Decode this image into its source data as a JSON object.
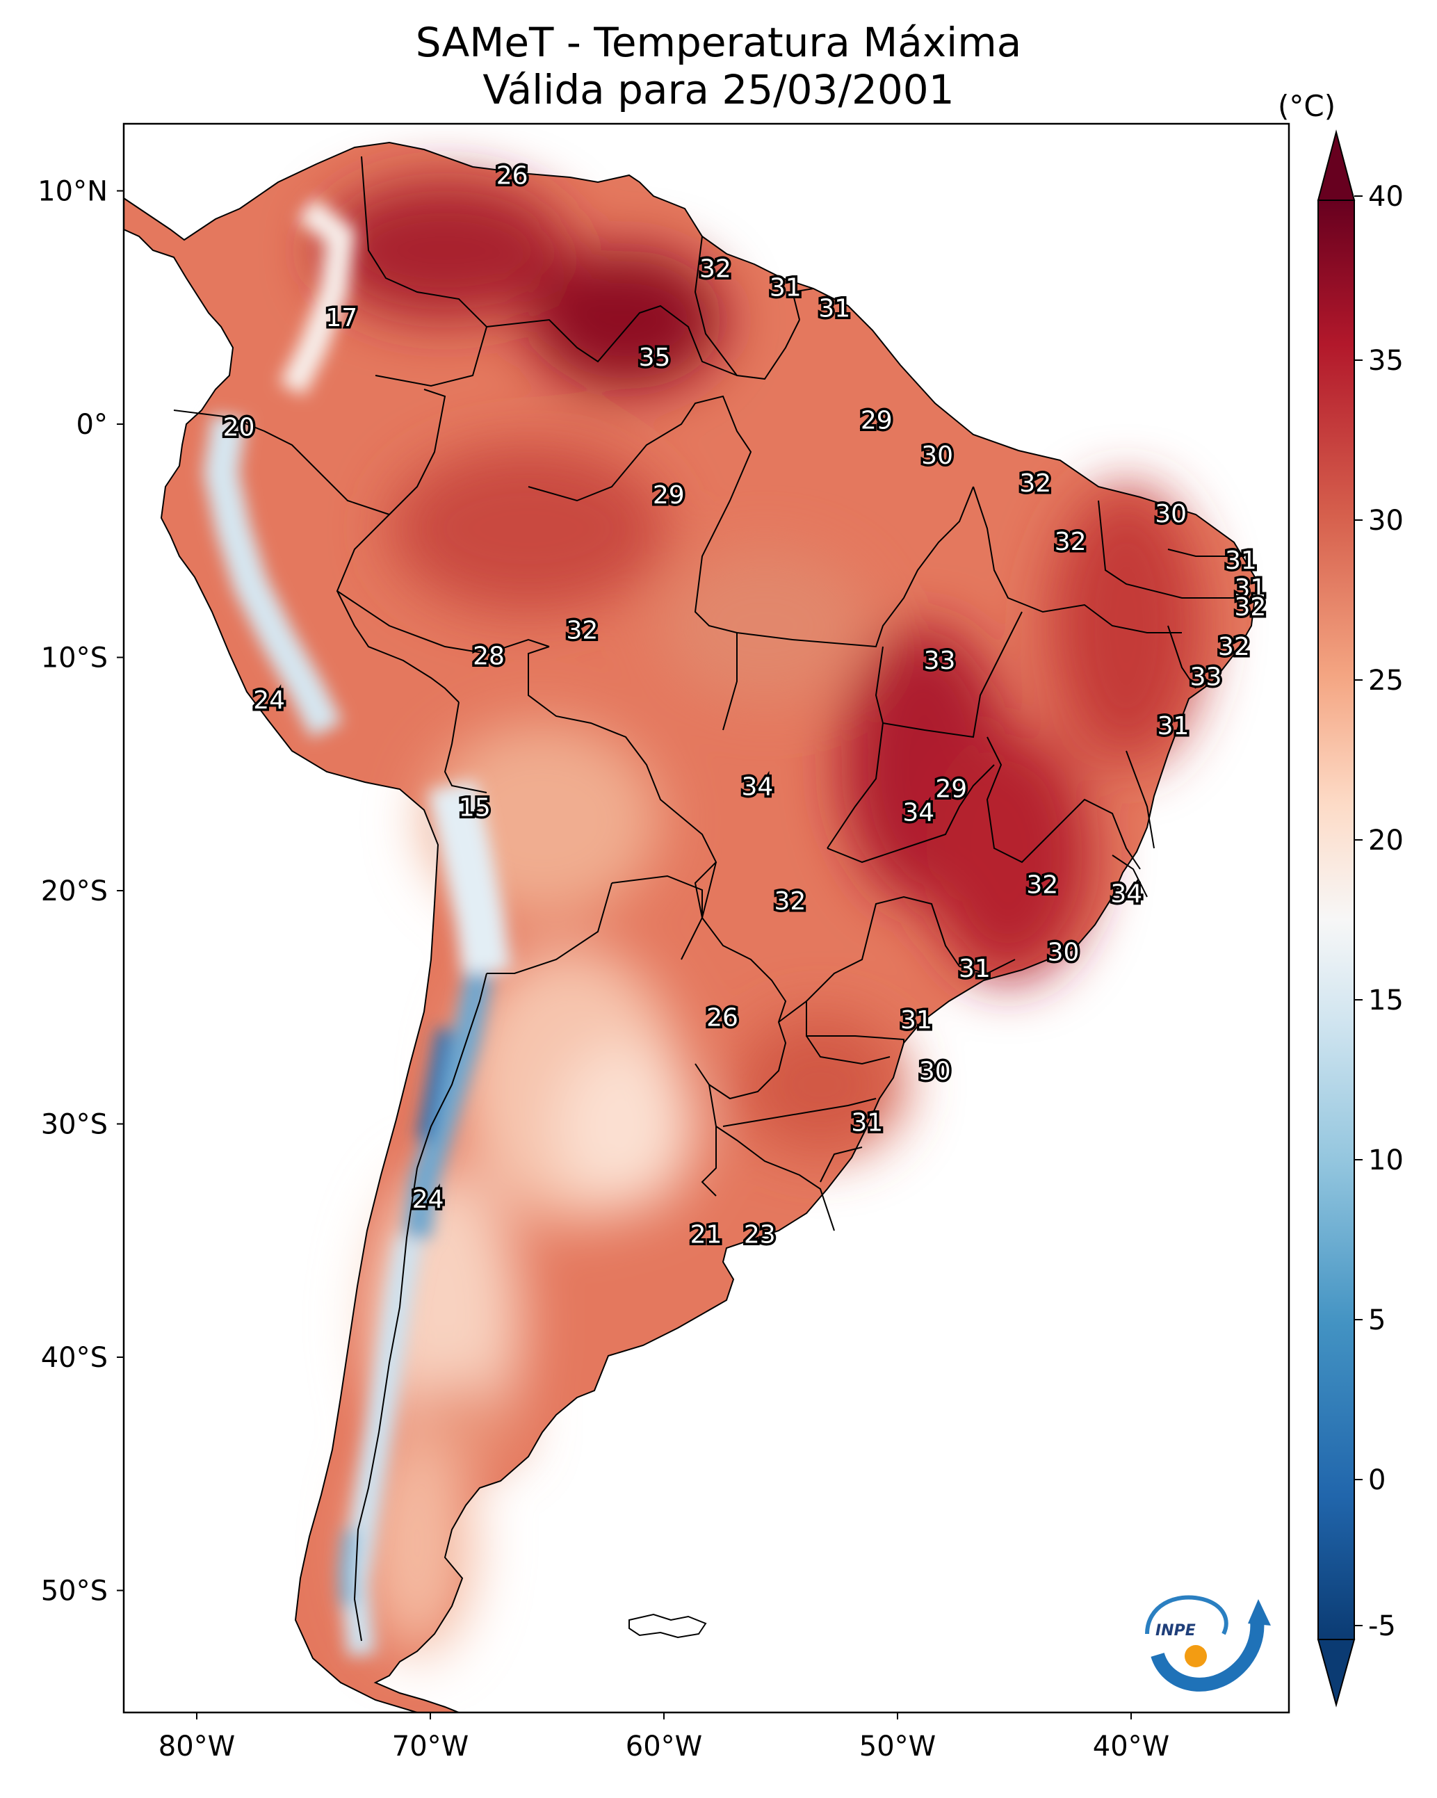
{
  "title_line1": "SAMeT - Temperatura Máxima",
  "title_line2": "Válida para 25/03/2001",
  "unit": "(°C)",
  "lat_ticks": [
    "10°N",
    "0°",
    "10°S",
    "20°S",
    "30°S",
    "40°S",
    "50°S"
  ],
  "lon_ticks": [
    "80°W",
    "70°W",
    "60°W",
    "50°W",
    "40°W"
  ],
  "colorbar": {
    "ticks": [
      "40",
      "35",
      "30",
      "25",
      "20",
      "15",
      "10",
      "5",
      "0",
      "-5"
    ],
    "min": -5,
    "max": 40,
    "colors": [
      "#0b3b73",
      "#2166ac",
      "#4393c3",
      "#92c5de",
      "#d1e5f0",
      "#f7f7f7",
      "#fddbc7",
      "#f4a582",
      "#d6604d",
      "#b2182b",
      "#67001f"
    ]
  },
  "logo_text": "INPE",
  "point_labels": [
    {
      "text": "26",
      "lon": -66.5,
      "lat": 10.6
    },
    {
      "text": "32",
      "lon": -57.8,
      "lat": 6.6
    },
    {
      "text": "31",
      "lon": -54.8,
      "lat": 5.8
    },
    {
      "text": "31",
      "lon": -52.7,
      "lat": 4.9
    },
    {
      "text": "17",
      "lon": -73.8,
      "lat": 4.5
    },
    {
      "text": "35",
      "lon": -60.4,
      "lat": 2.8
    },
    {
      "text": "29",
      "lon": -50.9,
      "lat": 0.1
    },
    {
      "text": "20",
      "lon": -78.2,
      "lat": -0.2
    },
    {
      "text": "30",
      "lon": -48.3,
      "lat": -1.4
    },
    {
      "text": "32",
      "lon": -44.1,
      "lat": -2.6
    },
    {
      "text": "29",
      "lon": -59.8,
      "lat": -3.1
    },
    {
      "text": "30",
      "lon": -38.3,
      "lat": -3.9
    },
    {
      "text": "32",
      "lon": -42.6,
      "lat": -5.1
    },
    {
      "text": "31",
      "lon": -35.3,
      "lat": -5.9
    },
    {
      "text": "31",
      "lon": -34.9,
      "lat": -7.1
    },
    {
      "text": "32",
      "lon": -34.9,
      "lat": -7.9
    },
    {
      "text": "32",
      "lon": -63.5,
      "lat": -8.9
    },
    {
      "text": "32",
      "lon": -35.6,
      "lat": -9.6
    },
    {
      "text": "28",
      "lon": -67.5,
      "lat": -10.0
    },
    {
      "text": "33",
      "lon": -48.2,
      "lat": -10.2
    },
    {
      "text": "33",
      "lon": -36.8,
      "lat": -10.9
    },
    {
      "text": "24",
      "lon": -76.9,
      "lat": -11.9
    },
    {
      "text": "31",
      "lon": -38.2,
      "lat": -13.0
    },
    {
      "text": "34",
      "lon": -56.0,
      "lat": -15.6
    },
    {
      "text": "29",
      "lon": -47.7,
      "lat": -15.7
    },
    {
      "text": "15",
      "lon": -68.1,
      "lat": -16.5
    },
    {
      "text": "34",
      "lon": -49.1,
      "lat": -16.7
    },
    {
      "text": "32",
      "lon": -43.8,
      "lat": -19.8
    },
    {
      "text": "34",
      "lon": -40.2,
      "lat": -20.2
    },
    {
      "text": "32",
      "lon": -54.6,
      "lat": -20.5
    },
    {
      "text": "30",
      "lon": -42.9,
      "lat": -22.7
    },
    {
      "text": "31",
      "lon": -46.7,
      "lat": -23.4
    },
    {
      "text": "26",
      "lon": -57.5,
      "lat": -25.5
    },
    {
      "text": "31",
      "lon": -49.2,
      "lat": -25.6
    },
    {
      "text": "30",
      "lon": -48.4,
      "lat": -27.8
    },
    {
      "text": "31",
      "lon": -51.3,
      "lat": -30.0
    },
    {
      "text": "24",
      "lon": -70.1,
      "lat": -33.3
    },
    {
      "text": "21",
      "lon": -58.2,
      "lat": -34.8
    },
    {
      "text": "23",
      "lon": -55.9,
      "lat": -34.8
    }
  ]
}
